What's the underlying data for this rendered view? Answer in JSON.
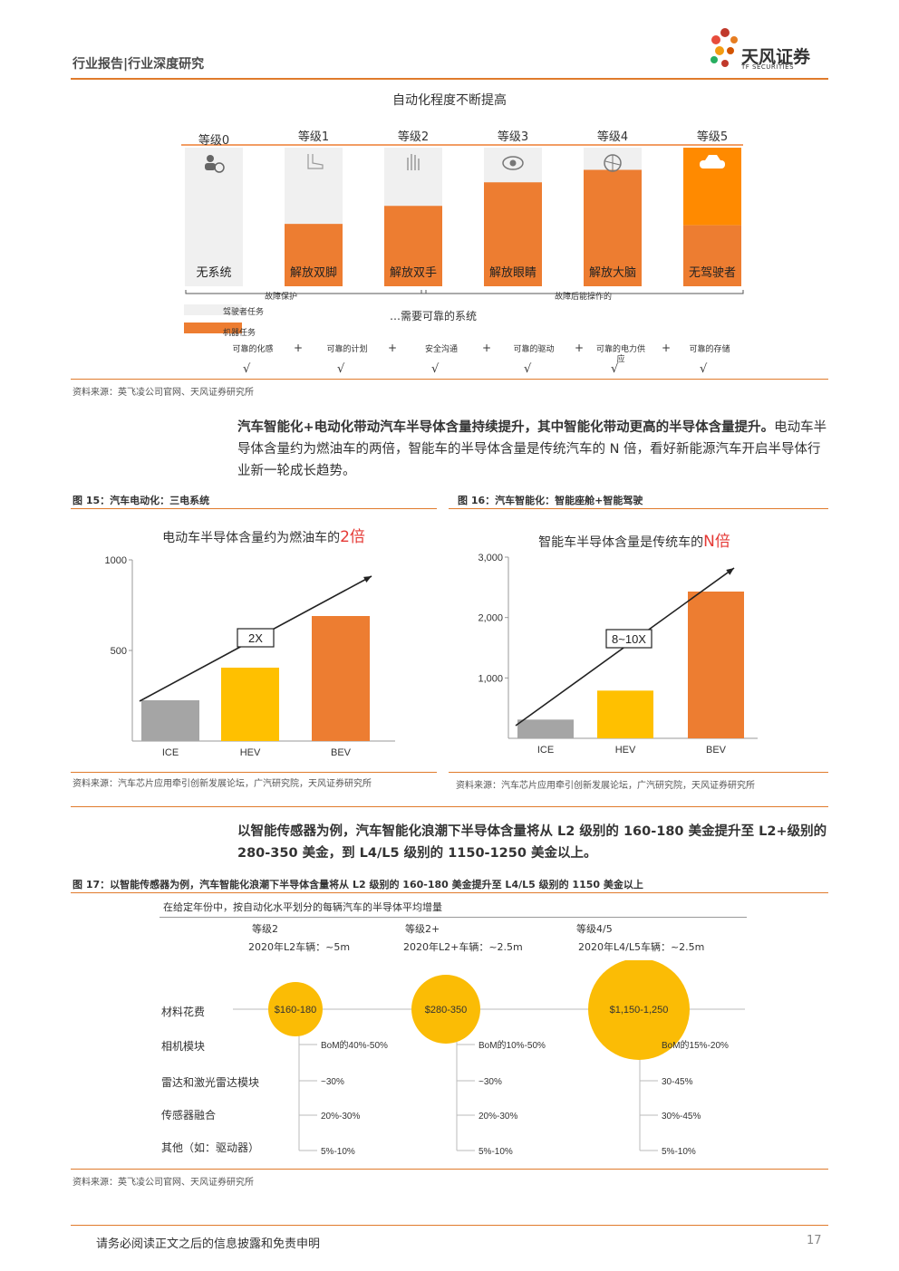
{
  "header": {
    "title": "行业报告|行业深度研究",
    "logo_cn": "天风证券",
    "logo_en": "TF SECURITIES"
  },
  "fig14": {
    "title": "自动化程度不断提高",
    "levels": [
      "等级0",
      "等级1",
      "等级2",
      "等级3",
      "等级4",
      "等级5"
    ],
    "labels": [
      "无系统",
      "解放双脚",
      "解放双手",
      "解放眼睛",
      "解放大脑",
      "无驾驶者"
    ],
    "machine_share": [
      0,
      0.45,
      0.58,
      0.75,
      0.84,
      1.0
    ],
    "brace_left": "故障保护",
    "brace_right": "故障后能操作的",
    "legend_driver": "驾驶者任务",
    "legend_machine": "机器任务",
    "reliable_note": "…需要可靠的系统",
    "requirements": [
      "可靠的化感",
      "可靠的计划",
      "安全沟通",
      "可靠的驱动",
      "可靠的电力供应",
      "可靠的存储"
    ],
    "plus": "+",
    "check": "√",
    "colors": {
      "driver": "#f0f0f0",
      "machine": "#ed7d31",
      "level5_top": "#ff8a00"
    },
    "source": "资料来源：英飞凌公司官网、天风证券研究所"
  },
  "paragraph1": {
    "bold": "汽车智能化+电动化带动汽车半导体含量持续提升，其中智能化带动更高的半导体含量提升。",
    "normal": "电动车半导体含量约为燃油车的两倍，智能车的半导体含量是传统汽车的 N 倍，看好新能源汽车开启半导体行业新一轮成长趋势。"
  },
  "fig15": {
    "caption": "图 15：汽车电动化：三电系统",
    "source": "资料来源：汽车芯片应用牵引创新发展论坛，广汽研究院，天风证券研究所",
    "chart_data": {
      "type": "bar",
      "title_prefix": "电动车半导体含量约为燃油车的",
      "title_highlight": "2倍",
      "categories": [
        "ICE",
        "HEV",
        "BEV"
      ],
      "values": [
        225,
        405,
        690
      ],
      "ylim": [
        0,
        1000
      ],
      "yticks": [
        "500",
        "1000"
      ],
      "ytick_values": [
        500,
        1000
      ],
      "annotation": "2X",
      "colors": [
        "#a5a5a5",
        "#ffc000",
        "#ed7d31"
      ]
    }
  },
  "fig16": {
    "caption": "图 16：汽车智能化：智能座舱+智能驾驶",
    "source": "资料来源：汽车芯片应用牵引创新发展论坛，广汽研究院，天风证券研究所",
    "chart_data": {
      "type": "bar",
      "title_prefix": "智能车半导体含量是传统车的",
      "title_highlight": "N倍",
      "categories": [
        "ICE",
        "HEV",
        "BEV"
      ],
      "values": [
        310,
        790,
        2430
      ],
      "ylim": [
        0,
        3000
      ],
      "yticks": [
        "1,000",
        "2,000",
        "3,000"
      ],
      "ytick_values": [
        1000,
        2000,
        3000
      ],
      "annotation": "8~10X",
      "colors": [
        "#a5a5a5",
        "#ffc000",
        "#ed7d31"
      ]
    }
  },
  "paragraph2": {
    "bold": "以智能传感器为例，汽车智能化浪潮下半导体含量将从 L2 级别的 160-180 美金提升至 L2+级别的 280-350 美金，到 L4/L5 级别的 1150-1250 美金以上。"
  },
  "fig17": {
    "caption": "图 17：以智能传感器为例，汽车智能化浪潮下半导体含量将从 L2 级别的 160-180 美金提升至 L4/L5 级别的 1150 美金以上",
    "header": "在给定年份中，按自动化水平划分的每辆汽车的半导体平均增量",
    "rows": [
      "材料花费",
      "相机模块",
      "雷达和激光雷达模块",
      "传感器融合",
      "其他（如：驱动器）"
    ],
    "columns": [
      {
        "level": "等级2",
        "volume": "2020年L2车辆：~5m",
        "bom": "$160-180",
        "values": [
          "BoM的40%-50%",
          "~30%",
          "20%-30%",
          "5%-10%"
        ]
      },
      {
        "level": "等级2+",
        "volume": "2020年L2+车辆：~2.5m",
        "bom": "$280-350",
        "values": [
          "BoM的10%-50%",
          "~30%",
          "20%-30%",
          "5%-10%"
        ]
      },
      {
        "level": "等级4/5",
        "volume": "2020年L4/L5车辆：~2.5m",
        "bom": "$1,150-1,250",
        "values": [
          "BoM的15%-20%",
          "30-45%",
          "30%-45%",
          "5%-10%"
        ]
      }
    ],
    "source": "资料来源：英飞凌公司官网、天风证券研究所"
  },
  "footer": {
    "disclaimer": "请务必阅读正文之后的信息披露和免责申明",
    "page": "17"
  }
}
